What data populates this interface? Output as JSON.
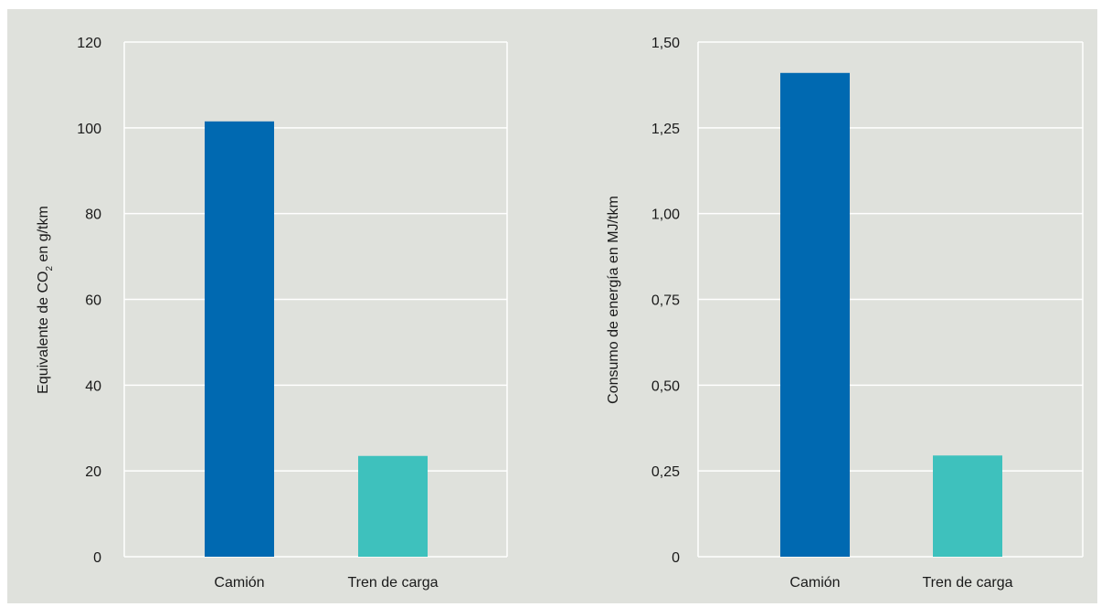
{
  "colors": {
    "background": "#dfe1dc",
    "grid": "#ffffff",
    "text": "#1a1a1a"
  },
  "chart_data": [
    {
      "type": "bar",
      "categories": [
        "Camión",
        "Tren de carga"
      ],
      "values": [
        101.5,
        23.5
      ],
      "colors": [
        "#0069b1",
        "#3ec1bd"
      ],
      "ylim": [
        0,
        120
      ],
      "yticks": [
        "0",
        "20",
        "40",
        "60",
        "80",
        "100",
        "120"
      ],
      "ylabel": {
        "prefix": "Equivalente de CO",
        "subscript": "2",
        "suffix": " en g/tkm"
      },
      "xlabel": "",
      "grid": true
    },
    {
      "type": "bar",
      "categories": [
        "Camión",
        "Tren de carga"
      ],
      "values": [
        1.41,
        0.295
      ],
      "colors": [
        "#0069b1",
        "#3ec1bd"
      ],
      "ylim": [
        0,
        1.5
      ],
      "yticks": [
        "0",
        "0,25",
        "0,50",
        "0,75",
        "1,00",
        "1,25",
        "1,50"
      ],
      "ylabel": {
        "prefix": "Consumo de energía en MJ/tkm",
        "subscript": "",
        "suffix": ""
      },
      "xlabel": "",
      "grid": true
    }
  ]
}
